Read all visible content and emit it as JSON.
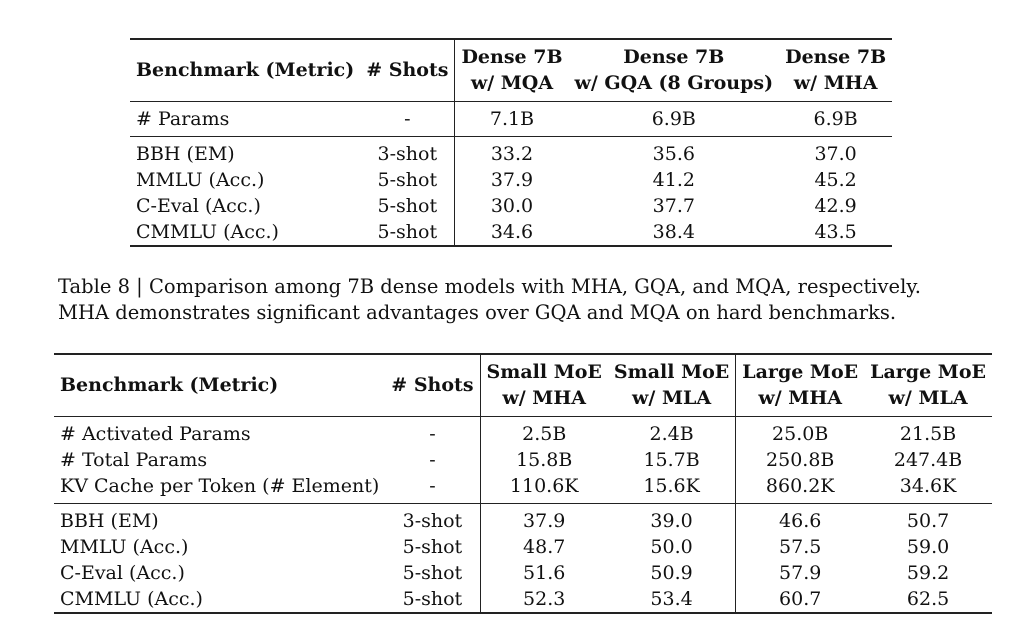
{
  "table8": {
    "columns": [
      "Benchmark (Metric)",
      "# Shots",
      "Dense 7B\nw/ MQA",
      "Dense 7B\nw/ GQA (8 Groups)",
      "Dense 7B\nw/ MHA"
    ],
    "header": {
      "benchmark": "Benchmark (Metric)",
      "shots": "# Shots",
      "col1_line1": "Dense 7B",
      "col1_line2": "w/ MQA",
      "col2_line1": "Dense 7B",
      "col2_line2": "w/ GQA (8 Groups)",
      "col3_line1": "Dense 7B",
      "col3_line2": "w/ MHA"
    },
    "params_row": {
      "label": "# Params",
      "shots": "-",
      "v1": "7.1B",
      "v2": "6.9B",
      "v3": "6.9B"
    },
    "rows": [
      {
        "label": "BBH (EM)",
        "shots": "3-shot",
        "v1": "33.2",
        "v2": "35.6",
        "v3": "37.0"
      },
      {
        "label": "MMLU (Acc.)",
        "shots": "5-shot",
        "v1": "37.9",
        "v2": "41.2",
        "v3": "45.2"
      },
      {
        "label": "C-Eval (Acc.)",
        "shots": "5-shot",
        "v1": "30.0",
        "v2": "37.7",
        "v3": "42.9"
      },
      {
        "label": "CMMLU (Acc.)",
        "shots": "5-shot",
        "v1": "34.6",
        "v2": "38.4",
        "v3": "43.5"
      }
    ]
  },
  "caption": {
    "text": "Table 8 | Comparison among 7B dense models with MHA, GQA, and MQA, respectively. MHA demonstrates significant advantages over GQA and MQA on hard benchmarks."
  },
  "table9": {
    "header": {
      "benchmark": "Benchmark (Metric)",
      "shots": "# Shots",
      "c1_l1": "Small MoE",
      "c1_l2": "w/ MHA",
      "c2_l1": "Small MoE",
      "c2_l2": "w/ MLA",
      "c3_l1": "Large MoE",
      "c3_l2": "w/ MHA",
      "c4_l1": "Large MoE",
      "c4_l2": "w/ MLA"
    },
    "param_rows": [
      {
        "label": "# Activated Params",
        "shots": "-",
        "v1": "2.5B",
        "v2": "2.4B",
        "v3": "25.0B",
        "v4": "21.5B"
      },
      {
        "label": "# Total Params",
        "shots": "-",
        "v1": "15.8B",
        "v2": "15.7B",
        "v3": "250.8B",
        "v4": "247.4B"
      },
      {
        "label": "KV Cache per Token (# Element)",
        "shots": "-",
        "v1": "110.6K",
        "v2": "15.6K",
        "v3": "860.2K",
        "v4": "34.6K"
      }
    ],
    "rows": [
      {
        "label": "BBH (EM)",
        "shots": "3-shot",
        "v1": "37.9",
        "v2": "39.0",
        "v3": "46.6",
        "v4": "50.7"
      },
      {
        "label": "MMLU (Acc.)",
        "shots": "5-shot",
        "v1": "48.7",
        "v2": "50.0",
        "v3": "57.5",
        "v4": "59.0"
      },
      {
        "label": "C-Eval (Acc.)",
        "shots": "5-shot",
        "v1": "51.6",
        "v2": "50.9",
        "v3": "57.9",
        "v4": "59.2"
      },
      {
        "label": "CMMLU (Acc.)",
        "shots": "5-shot",
        "v1": "52.3",
        "v2": "53.4",
        "v3": "60.7",
        "v4": "62.5"
      }
    ]
  }
}
